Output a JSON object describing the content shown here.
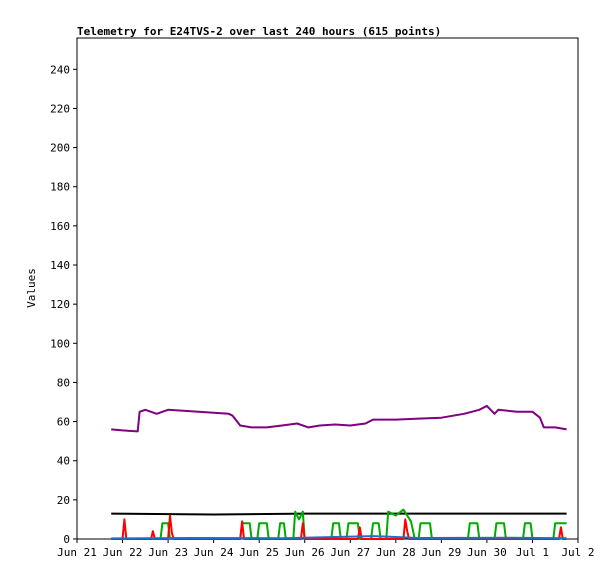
{
  "chart_data": {
    "type": "line",
    "title": "Telemetry for E24TVS-2 over last 240 hours (615 points)",
    "xlabel": "",
    "ylabel": "Values",
    "ylim": [
      0,
      256
    ],
    "y_ticks": [
      0,
      20,
      40,
      60,
      80,
      100,
      120,
      140,
      160,
      180,
      200,
      220,
      240
    ],
    "x_range_days": [
      "Jun 21",
      "Jul 2"
    ],
    "x_ticks": [
      "Jun 21",
      "Jun 22",
      "Jun 23",
      "Jun 24",
      "Jun 25",
      "Jun 26",
      "Jun 27",
      "Jun 28",
      "Jun 29",
      "Jun 30",
      "Jul 1",
      "Jul 2"
    ],
    "grid": false,
    "legend": "none",
    "series": [
      {
        "color": "#800080",
        "points": [
          [
            "Jun 21 18:00",
            56
          ],
          [
            "Jun 22 00:00",
            55.5
          ],
          [
            "Jun 22 08:00",
            55
          ],
          [
            "Jun 22 09:00",
            65
          ],
          [
            "Jun 22 12:00",
            66
          ],
          [
            "Jun 22 18:00",
            64
          ],
          [
            "Jun 23 00:00",
            66
          ],
          [
            "Jun 23 08:00",
            65.5
          ],
          [
            "Jun 23 16:00",
            65
          ],
          [
            "Jun 24 00:00",
            64.5
          ],
          [
            "Jun 24 08:00",
            64
          ],
          [
            "Jun 24 10:00",
            63
          ],
          [
            "Jun 24 14:00",
            58
          ],
          [
            "Jun 24 20:00",
            57
          ],
          [
            "Jun 25 04:00",
            57
          ],
          [
            "Jun 25 12:00",
            58
          ],
          [
            "Jun 25 20:00",
            59
          ],
          [
            "Jun 26 02:00",
            57
          ],
          [
            "Jun 26 08:00",
            58
          ],
          [
            "Jun 26 16:00",
            58.5
          ],
          [
            "Jun 27 00:00",
            58
          ],
          [
            "Jun 27 08:00",
            59
          ],
          [
            "Jun 27 12:00",
            61
          ],
          [
            "Jun 28 00:00",
            61
          ],
          [
            "Jun 28 12:00",
            61.5
          ],
          [
            "Jun 29 00:00",
            62
          ],
          [
            "Jun 29 12:00",
            64
          ],
          [
            "Jun 29 20:00",
            66
          ],
          [
            "Jun 30 00:00",
            68
          ],
          [
            "Jun 30 04:00",
            64
          ],
          [
            "Jun 30 06:00",
            66
          ],
          [
            "Jun 30 16:00",
            65
          ],
          [
            "Jul 1 00:00",
            65
          ],
          [
            "Jul 1 04:00",
            62
          ],
          [
            "Jul 1 06:00",
            57
          ],
          [
            "Jul 1 12:00",
            57
          ],
          [
            "Jul 1 18:00",
            56
          ]
        ]
      },
      {
        "color": "#000000",
        "points": [
          [
            "Jun 21 18:00",
            13
          ],
          [
            "Jun 24 00:00",
            12.5
          ],
          [
            "Jun 26 00:00",
            13
          ],
          [
            "Jun 28 00:00",
            13
          ],
          [
            "Jun 30 00:00",
            13
          ],
          [
            "Jul 1 18:00",
            13
          ]
        ]
      },
      {
        "color": "#00aa00",
        "points": [
          [
            "Jun 21 18:00",
            0
          ],
          [
            "Jun 22 20:00",
            0
          ],
          [
            "Jun 22 21:00",
            8
          ],
          [
            "Jun 23 00:00",
            8
          ],
          [
            "Jun 23 01:00",
            0
          ],
          [
            "Jun 24 14:00",
            0
          ],
          [
            "Jun 24 15:00",
            8
          ],
          [
            "Jun 24 19:00",
            8
          ],
          [
            "Jun 24 20:00",
            0
          ],
          [
            "Jun 24 23:00",
            0
          ],
          [
            "Jun 25 00:00",
            8
          ],
          [
            "Jun 25 04:00",
            8
          ],
          [
            "Jun 25 05:00",
            0
          ],
          [
            "Jun 25 10:00",
            0
          ],
          [
            "Jun 25 11:00",
            8
          ],
          [
            "Jun 25 13:00",
            8
          ],
          [
            "Jun 25 14:00",
            0
          ],
          [
            "Jun 25 18:00",
            0
          ],
          [
            "Jun 25 19:00",
            14
          ],
          [
            "Jun 25 21:00",
            10
          ],
          [
            "Jun 25 23:00",
            14
          ],
          [
            "Jun 26 00:00",
            0
          ],
          [
            "Jun 26 14:00",
            0
          ],
          [
            "Jun 26 15:00",
            8
          ],
          [
            "Jun 26 18:00",
            8
          ],
          [
            "Jun 26 19:00",
            0
          ],
          [
            "Jun 26 22:00",
            0
          ],
          [
            "Jun 26 23:00",
            8
          ],
          [
            "Jun 27 04:00",
            8
          ],
          [
            "Jun 27 05:00",
            0
          ],
          [
            "Jun 27 11:00",
            0
          ],
          [
            "Jun 27 12:00",
            8
          ],
          [
            "Jun 27 15:00",
            8
          ],
          [
            "Jun 27 16:00",
            0
          ],
          [
            "Jun 27 19:00",
            0
          ],
          [
            "Jun 27 20:00",
            14
          ],
          [
            "Jun 28 00:00",
            12
          ],
          [
            "Jun 28 04:00",
            15
          ],
          [
            "Jun 28 08:00",
            9
          ],
          [
            "Jun 28 10:00",
            0
          ],
          [
            "Jun 28 12:00",
            0
          ],
          [
            "Jun 28 13:00",
            8
          ],
          [
            "Jun 28 18:00",
            8
          ],
          [
            "Jun 28 19:00",
            0
          ],
          [
            "Jun 29 14:00",
            0
          ],
          [
            "Jun 29 15:00",
            8
          ],
          [
            "Jun 29 19:00",
            8
          ],
          [
            "Jun 29 20:00",
            0
          ],
          [
            "Jun 30 04:00",
            0
          ],
          [
            "Jun 30 05:00",
            8
          ],
          [
            "Jun 30 09:00",
            8
          ],
          [
            "Jun 30 10:00",
            0
          ],
          [
            "Jun 30 19:00",
            0
          ],
          [
            "Jun 30 20:00",
            8
          ],
          [
            "Jun 30 23:00",
            8
          ],
          [
            "Jul 1 00:00",
            0
          ],
          [
            "Jul 1 11:00",
            0
          ],
          [
            "Jul 1 12:00",
            8
          ],
          [
            "Jul 1 18:00",
            8
          ]
        ]
      },
      {
        "color": "#ff0000",
        "points": [
          [
            "Jun 21 18:00",
            0
          ],
          [
            "Jun 22 00:00",
            0
          ],
          [
            "Jun 22 01:00",
            10
          ],
          [
            "Jun 22 02:00",
            0
          ],
          [
            "Jun 22 15:00",
            0
          ],
          [
            "Jun 22 16:00",
            4
          ],
          [
            "Jun 22 17:00",
            0
          ],
          [
            "Jun 23 00:00",
            0
          ],
          [
            "Jun 23 01:00",
            12
          ],
          [
            "Jun 23 02:00",
            3
          ],
          [
            "Jun 23 03:00",
            0
          ],
          [
            "Jun 24 14:00",
            0
          ],
          [
            "Jun 24 15:00",
            9
          ],
          [
            "Jun 24 16:00",
            0
          ],
          [
            "Jun 25 22:00",
            0
          ],
          [
            "Jun 25 23:00",
            8
          ],
          [
            "Jun 26 00:00",
            0
          ],
          [
            "Jun 27 04:00",
            0
          ],
          [
            "Jun 27 05:00",
            6
          ],
          [
            "Jun 27 06:00",
            0
          ],
          [
            "Jun 28 04:00",
            0
          ],
          [
            "Jun 28 05:00",
            10
          ],
          [
            "Jun 28 06:00",
            4
          ],
          [
            "Jun 28 07:00",
            0
          ],
          [
            "Jul 1 14:00",
            0
          ],
          [
            "Jul 1 15:00",
            6
          ],
          [
            "Jul 1 16:00",
            0
          ],
          [
            "Jul 1 18:00",
            0
          ]
        ]
      },
      {
        "color": "#1e6ec8",
        "points": [
          [
            "Jun 21 18:00",
            0.3
          ],
          [
            "Jun 23 12:00",
            0.5
          ],
          [
            "Jun 25 12:00",
            0.4
          ],
          [
            "Jun 27 12:00",
            1.5
          ],
          [
            "Jun 28 12:00",
            0.5
          ],
          [
            "Jun 30 12:00",
            0.6
          ],
          [
            "Jul 1 18:00",
            0.4
          ]
        ]
      }
    ]
  }
}
